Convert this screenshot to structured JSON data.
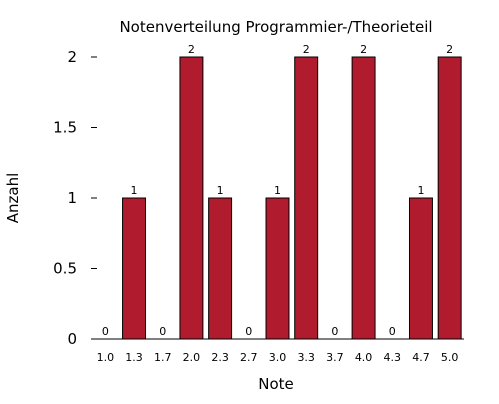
{
  "chart_data": {
    "type": "bar",
    "title": "Notenverteilung Programmier-/Theorieteil",
    "xlabel": "Note",
    "ylabel": "Anzahl",
    "categories": [
      "1.0",
      "1.3",
      "1.7",
      "2.0",
      "2.3",
      "2.7",
      "3.0",
      "3.3",
      "3.7",
      "4.0",
      "4.3",
      "4.7",
      "5.0"
    ],
    "values": [
      0,
      1,
      0,
      2,
      1,
      0,
      1,
      2,
      0,
      2,
      0,
      1,
      2
    ],
    "data_labels": [
      "0",
      "1",
      "0",
      "2",
      "1",
      "0",
      "1",
      "2",
      "0",
      "2",
      "0",
      "1",
      "2"
    ],
    "yticks": [
      0,
      0.5,
      1,
      1.5,
      2
    ],
    "ytick_labels": [
      "0",
      "0.5",
      "1",
      "1.5",
      "2"
    ],
    "ylim": [
      0,
      2
    ],
    "grid": false,
    "legend": "none",
    "colors": {
      "bar_fill": "#b01c2e",
      "bar_stroke": "#000000",
      "axis": "#000000"
    }
  }
}
